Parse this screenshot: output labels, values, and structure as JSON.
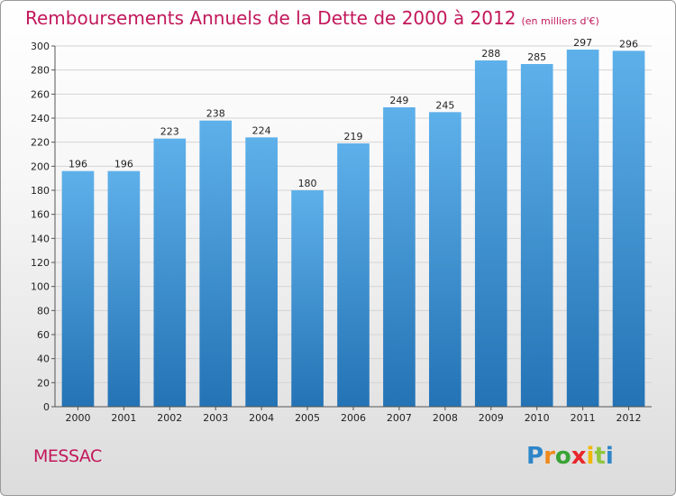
{
  "header": {
    "title": "Remboursements Annuels de la Dette de 2000 à 2012",
    "unit": "(en milliers d'€)"
  },
  "footer": {
    "commune": "MESSAC",
    "logo": "Proxiti"
  },
  "colors": {
    "title": "#c2185b",
    "bar_light": "#5eb0ea",
    "bar_dark": "#2473b5",
    "logo_letters": [
      "#2e86c8",
      "#f08a1c",
      "#3aa335",
      "#e8272a",
      "#f2b705",
      "#8fc63f",
      "#2e86c8"
    ]
  },
  "chart_data": {
    "type": "bar",
    "title": "Remboursements Annuels de la Dette de 2000 à 2012",
    "xlabel": "",
    "ylabel": "",
    "categories": [
      "2000",
      "2001",
      "2002",
      "2003",
      "2004",
      "2005",
      "2006",
      "2007",
      "2008",
      "2009",
      "2010",
      "2011",
      "2012"
    ],
    "values": [
      196,
      196,
      223,
      238,
      224,
      180,
      219,
      249,
      245,
      288,
      285,
      297,
      296
    ],
    "ylim": [
      0,
      300
    ],
    "yticks": [
      0,
      20,
      40,
      60,
      80,
      100,
      120,
      140,
      160,
      180,
      200,
      220,
      240,
      260,
      280,
      300
    ],
    "grid": true,
    "legend": "none"
  }
}
